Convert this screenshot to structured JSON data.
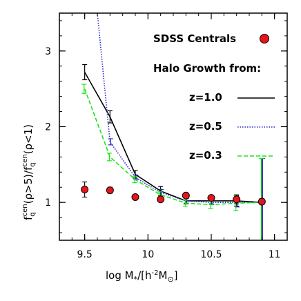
{
  "chart_data": {
    "type": "line",
    "xlabel_main": "log M",
    "xlabel_star": "*",
    "xlabel_rest": "/[h",
    "xlabel_exp": "-2",
    "xlabel_m": "M",
    "xlabel_sun": "⊙",
    "xlabel_close": "]",
    "ylabel": {
      "p1": "f",
      "p1_sub": "q",
      "p1_sup": "cen",
      "p2": "(ρ>5)/f",
      "p3_sub": "q",
      "p3_sup": "cen",
      "p4": "(ρ<1)"
    },
    "xlim": [
      9.3,
      11.1
    ],
    "ylim": [
      0.5,
      3.5
    ],
    "x_ticks": [
      9.5,
      10,
      10.5,
      11
    ],
    "x_tick_labels": [
      "9.5",
      "10",
      "10.5",
      "11"
    ],
    "y_ticks": [
      1,
      2,
      3
    ],
    "y_tick_labels": [
      "1",
      "2",
      "3"
    ],
    "grid": false,
    "legend_position": "top-right",
    "legend_title": "Halo Growth from:",
    "sdss_label": "SDSS Centrals",
    "sdss": {
      "name": "SDSS Centrals",
      "color": "#e8141b",
      "x": [
        9.5,
        9.7,
        9.9,
        10.1,
        10.3,
        10.5,
        10.7,
        10.9
      ],
      "y": [
        1.17,
        1.16,
        1.07,
        1.04,
        1.09,
        1.06,
        1.04,
        1.01
      ],
      "err": [
        0.1,
        0.04,
        0.02,
        0.03,
        0.02,
        0.02,
        0.06,
        0.04
      ]
    },
    "series": [
      {
        "name": "z=1.0",
        "color": "#000000",
        "dash": "",
        "x": [
          9.5,
          9.7,
          9.9,
          10.1,
          10.3,
          10.5,
          10.7,
          10.9
        ],
        "y": [
          2.72,
          2.13,
          1.37,
          1.15,
          1.02,
          1.02,
          1.02,
          1.0
        ],
        "err": [
          0.1,
          0.08,
          0.05,
          0.06,
          0.04,
          0.04,
          0.07,
          0.58
        ],
        "err_x_offset": 0
      },
      {
        "name": "z=0.5",
        "color": "#2424cc",
        "dash": "1.5,2",
        "x": [
          9.6,
          9.7,
          9.9,
          10.1,
          10.3,
          10.5,
          10.7,
          10.9
        ],
        "y": [
          3.5,
          1.8,
          1.33,
          1.13,
          1.02,
          1.0,
          1.0,
          1.0
        ],
        "err": [
          0,
          0.04,
          0.03,
          0.04,
          0.03,
          0.03,
          0.06,
          0.58
        ],
        "err_x_offset": 0.005
      },
      {
        "name": "z=0.3",
        "color": "#19e619",
        "dash": "6,3",
        "x": [
          9.5,
          9.7,
          9.9,
          10.1,
          10.3,
          10.5,
          10.7,
          10.9
        ],
        "y": [
          2.5,
          1.6,
          1.3,
          1.1,
          0.99,
          0.97,
          0.99,
          1.0
        ],
        "err": [
          0.06,
          0.05,
          0.04,
          0.04,
          0.04,
          0.05,
          0.1,
          0.58
        ],
        "err_x_offset": -0.005
      }
    ]
  }
}
